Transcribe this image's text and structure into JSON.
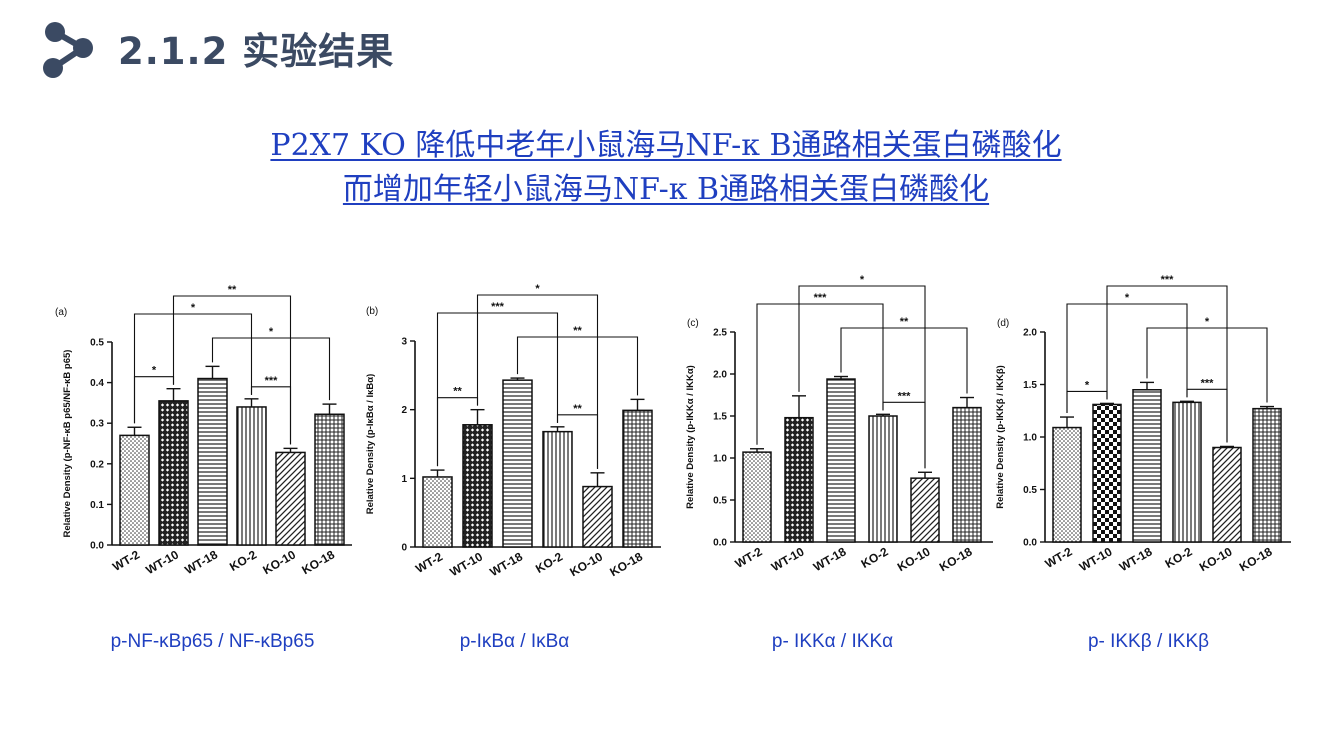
{
  "header": {
    "title": "2.1.2 实验结果",
    "logo_icon": "molecule-node-icon",
    "accent_color": "#3b4a63"
  },
  "headline": {
    "line1": "P2X7 KO 降低中老年小鼠海马NF-κ B通路相关蛋白磷酸化",
    "line2": "而增加年轻小鼠海马NF-κ B通路相关蛋白磷酸化",
    "color": "#1f3fc0"
  },
  "captions": [
    "p-NF-κBp65 / NF-κBp65",
    "p-IκBα / IκBα",
    "p- IKKα / IKKα",
    "p- IKKβ / IKKβ"
  ],
  "chart_data": [
    {
      "type": "bar",
      "panel": "(a)",
      "ylabel": "Relative Density (p-NF-κB p65/NF-κB p65)",
      "categories": [
        "WT-2",
        "WT-10",
        "WT-18",
        "KO-2",
        "KO-10",
        "KO-18"
      ],
      "values": [
        0.27,
        0.355,
        0.41,
        0.34,
        0.228,
        0.322
      ],
      "errors": [
        0.02,
        0.03,
        0.03,
        0.02,
        0.01,
        0.025
      ],
      "ylim": [
        0,
        0.5
      ],
      "yticks": [
        "0.0",
        "0.1",
        "0.2",
        "0.3",
        "0.4",
        "0.5"
      ],
      "patterns": [
        "dots",
        "checker",
        "hlines",
        "vlines",
        "diag",
        "grid"
      ],
      "significance": [
        {
          "from": 0,
          "to": 1,
          "label": "*"
        },
        {
          "from": 0,
          "to": 3,
          "label": "*"
        },
        {
          "from": 1,
          "to": 4,
          "label": "**"
        },
        {
          "from": 2,
          "to": 5,
          "label": "*"
        },
        {
          "from": 3,
          "to": 4,
          "label": "***"
        }
      ]
    },
    {
      "type": "bar",
      "panel": "(b)",
      "ylabel": "Relative Density (p-IκBα / IκBα)",
      "categories": [
        "WT-2",
        "WT-10",
        "WT-18",
        "KO-2",
        "KO-10",
        "KO-18"
      ],
      "values": [
        1.02,
        1.78,
        2.43,
        1.68,
        0.88,
        1.99
      ],
      "errors": [
        0.1,
        0.22,
        0.03,
        0.07,
        0.2,
        0.16
      ],
      "ylim": [
        0,
        3
      ],
      "yticks": [
        "0",
        "1",
        "2",
        "3"
      ],
      "patterns": [
        "dots",
        "checker",
        "hlines",
        "vlines",
        "diag",
        "grid"
      ],
      "significance": [
        {
          "from": 0,
          "to": 1,
          "label": "**"
        },
        {
          "from": 0,
          "to": 3,
          "label": "***"
        },
        {
          "from": 1,
          "to": 4,
          "label": "*"
        },
        {
          "from": 2,
          "to": 5,
          "label": "**"
        },
        {
          "from": 3,
          "to": 4,
          "label": "**"
        }
      ]
    },
    {
      "type": "bar",
      "panel": "(c)",
      "ylabel": "Relative Density (p-IKKα / IKKα)",
      "categories": [
        "WT-2",
        "WT-10",
        "WT-18",
        "KO-2",
        "KO-10",
        "KO-18"
      ],
      "values": [
        1.07,
        1.48,
        1.94,
        1.5,
        0.76,
        1.6
      ],
      "errors": [
        0.04,
        0.26,
        0.03,
        0.02,
        0.07,
        0.12
      ],
      "ylim": [
        0,
        2.5
      ],
      "yticks": [
        "0.0",
        "0.5",
        "1.0",
        "1.5",
        "2.0",
        "2.5"
      ],
      "patterns": [
        "dots",
        "checker",
        "hlines",
        "vlines",
        "diag",
        "grid"
      ],
      "significance": [
        {
          "from": 0,
          "to": 3,
          "label": "***"
        },
        {
          "from": 1,
          "to": 4,
          "label": "*"
        },
        {
          "from": 2,
          "to": 5,
          "label": "**"
        },
        {
          "from": 3,
          "to": 4,
          "label": "***"
        }
      ]
    },
    {
      "type": "bar",
      "panel": "(d)",
      "ylabel": "Relative Density (p-IKKβ / IKKβ)",
      "categories": [
        "WT-2",
        "WT-10",
        "WT-18",
        "KO-2",
        "KO-10",
        "KO-18"
      ],
      "values": [
        1.09,
        1.31,
        1.45,
        1.33,
        0.9,
        1.27
      ],
      "errors": [
        0.1,
        0.01,
        0.07,
        0.01,
        0.01,
        0.02
      ],
      "ylim": [
        0,
        2.0
      ],
      "yticks": [
        "0.0",
        "0.5",
        "1.0",
        "1.5",
        "2.0"
      ],
      "patterns": [
        "dots",
        "checkerbig",
        "hlines",
        "vlines",
        "diag",
        "grid"
      ],
      "significance": [
        {
          "from": 0,
          "to": 1,
          "label": "*"
        },
        {
          "from": 0,
          "to": 3,
          "label": "*"
        },
        {
          "from": 1,
          "to": 4,
          "label": "***"
        },
        {
          "from": 2,
          "to": 5,
          "label": "*"
        },
        {
          "from": 3,
          "to": 4,
          "label": "***"
        }
      ]
    }
  ]
}
